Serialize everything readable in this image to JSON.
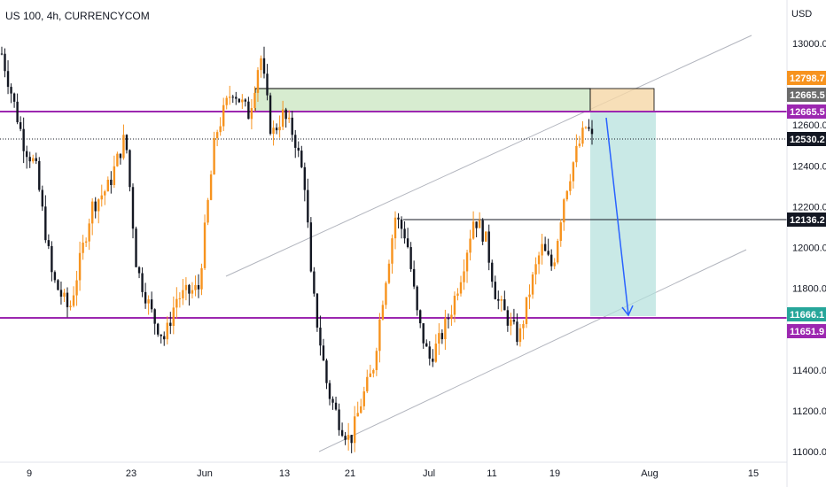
{
  "chart_data": {
    "type": "candlestick",
    "title": "US 100, 4h, CURRENCYCOM",
    "currency": "USD",
    "y_axis_ticks": [
      11000.0,
      11200.0,
      11400.0,
      11600.0,
      11800.0,
      12000.0,
      12200.0,
      12400.0,
      12600.0,
      13000.0
    ],
    "ylim": [
      10960,
      13230
    ],
    "x_axis_ticks": [
      "9",
      "23",
      "Jun",
      "13",
      "21",
      "Jul",
      "11",
      "19",
      "Aug",
      "15"
    ],
    "price_tags": [
      {
        "value": "12798.7",
        "bg": "#f7931e",
        "fg": "#ffffff"
      },
      {
        "value": "12665.5",
        "bg": "#6b6b6b",
        "fg": "#ffffff"
      },
      {
        "value": "12665.5",
        "bg": "#9c27b0",
        "fg": "#ffffff"
      },
      {
        "value": "12530.2",
        "bg": "#131722",
        "fg": "#ffffff"
      },
      {
        "value": "12136.2",
        "bg": "#131722",
        "fg": "#ffffff"
      },
      {
        "value": "11666.1",
        "bg": "#26a69a",
        "fg": "#ffffff"
      },
      {
        "value": "11651.9",
        "bg": "#9c27b0",
        "fg": "#ffffff"
      }
    ],
    "price_series": [
      {
        "t": 0,
        "p": 12950
      },
      {
        "t": 4,
        "p": 12500
      },
      {
        "t": 6,
        "p": 12400
      },
      {
        "t": 9,
        "p": 11850
      },
      {
        "t": 12,
        "p": 11690
      },
      {
        "t": 16,
        "p": 12200
      },
      {
        "t": 19,
        "p": 12300
      },
      {
        "t": 22,
        "p": 12550
      },
      {
        "t": 24,
        "p": 11900
      },
      {
        "t": 27,
        "p": 11650
      },
      {
        "t": 29,
        "p": 11550
      },
      {
        "t": 31,
        "p": 11750
      },
      {
        "t": 35,
        "p": 11800
      },
      {
        "t": 38,
        "p": 12550
      },
      {
        "t": 41,
        "p": 12780
      },
      {
        "t": 44,
        "p": 12650
      },
      {
        "t": 46,
        "p": 12950
      },
      {
        "t": 48,
        "p": 12550
      },
      {
        "t": 50,
        "p": 12650
      },
      {
        "t": 52,
        "p": 12550
      },
      {
        "t": 54,
        "p": 12300
      },
      {
        "t": 55,
        "p": 11850
      },
      {
        "t": 56,
        "p": 11650
      },
      {
        "t": 58,
        "p": 11300
      },
      {
        "t": 60,
        "p": 11150
      },
      {
        "t": 62,
        "p": 11050
      },
      {
        "t": 64,
        "p": 11250
      },
      {
        "t": 66,
        "p": 11400
      },
      {
        "t": 68,
        "p": 11800
      },
      {
        "t": 70,
        "p": 12150
      },
      {
        "t": 72,
        "p": 12050
      },
      {
        "t": 74,
        "p": 11650
      },
      {
        "t": 76,
        "p": 11450
      },
      {
        "t": 78,
        "p": 11550
      },
      {
        "t": 80,
        "p": 11700
      },
      {
        "t": 82,
        "p": 11900
      },
      {
        "t": 84,
        "p": 12150
      },
      {
        "t": 86,
        "p": 12050
      },
      {
        "t": 88,
        "p": 11750
      },
      {
        "t": 90,
        "p": 11650
      },
      {
        "t": 92,
        "p": 11550
      },
      {
        "t": 94,
        "p": 11800
      },
      {
        "t": 96,
        "p": 12000
      },
      {
        "t": 98,
        "p": 11900
      },
      {
        "t": 100,
        "p": 12250
      },
      {
        "t": 102,
        "p": 12450
      },
      {
        "t": 104,
        "p": 12600
      },
      {
        "t": 105,
        "p": 12530
      }
    ]
  }
}
